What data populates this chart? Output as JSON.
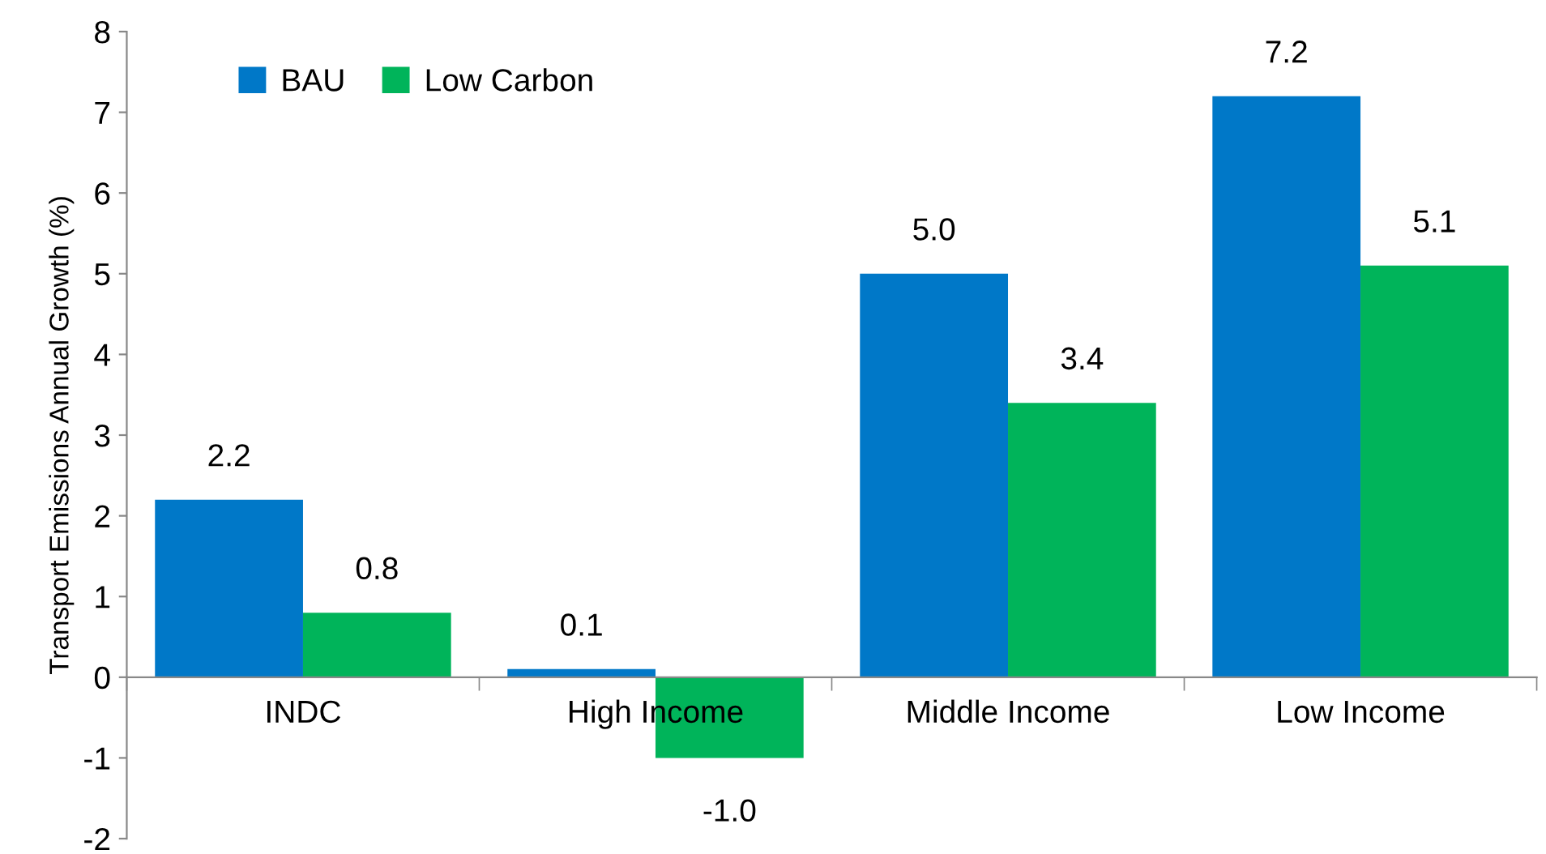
{
  "chart_data": {
    "type": "bar",
    "ylabel": "Transport Emissions Annual Growth (%)",
    "categories": [
      "INDC",
      "High Income",
      "Middle Income",
      "Low Income"
    ],
    "series": [
      {
        "name": "BAU",
        "color": "#0078c8",
        "values": [
          2.2,
          0.1,
          5.0,
          7.2
        ],
        "value_labels": [
          "2.2",
          "0.1",
          "5.0",
          "7.2"
        ]
      },
      {
        "name": "Low Carbon",
        "color": "#00b45a",
        "values": [
          0.8,
          -1.0,
          3.4,
          5.1
        ],
        "value_labels": [
          "0.8",
          "-1.0",
          "3.4",
          "5.1"
        ]
      }
    ],
    "ylim": [
      -2,
      8
    ],
    "yticks": [
      -2,
      -1,
      0,
      1,
      2,
      3,
      4,
      5,
      6,
      7,
      8
    ],
    "grid": false,
    "legend": "top left"
  }
}
